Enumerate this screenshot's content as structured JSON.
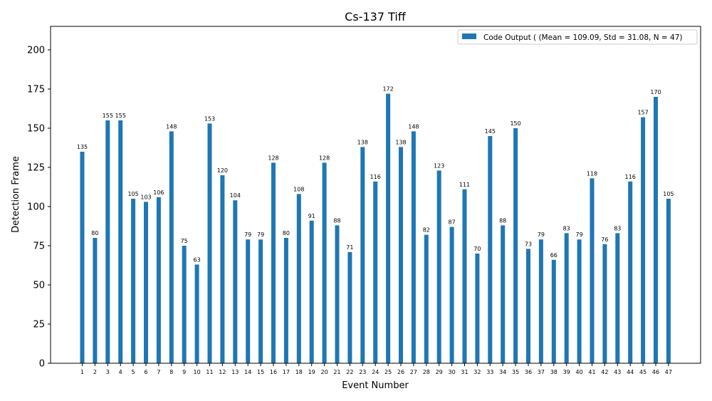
{
  "chart_data": {
    "type": "bar",
    "title": "Cs-137 Tiff",
    "xlabel": "Event Number",
    "ylabel": "Detection Frame",
    "ylim": [
      0,
      215
    ],
    "yticks": [
      0,
      25,
      50,
      75,
      100,
      125,
      150,
      175,
      200
    ],
    "grid": false,
    "legend_position": "top-right",
    "bar_color": "#1f77b4",
    "categories": [
      "1",
      "2",
      "3",
      "4",
      "5",
      "6",
      "7",
      "8",
      "9",
      "10",
      "11",
      "12",
      "13",
      "14",
      "15",
      "16",
      "17",
      "18",
      "19",
      "20",
      "21",
      "22",
      "23",
      "24",
      "25",
      "26",
      "27",
      "28",
      "29",
      "30",
      "31",
      "32",
      "33",
      "34",
      "35",
      "36",
      "37",
      "38",
      "39",
      "40",
      "41",
      "42",
      "43",
      "44",
      "45",
      "46",
      "47"
    ],
    "series": [
      {
        "name": "Code Output ( (Mean = 109.09, Std = 31.08, N = 47)",
        "values": [
          135,
          80,
          155,
          155,
          105,
          103,
          106,
          148,
          75,
          63,
          153,
          120,
          104,
          79,
          79,
          128,
          80,
          108,
          91,
          128,
          88,
          71,
          138,
          116,
          172,
          138,
          148,
          82,
          123,
          87,
          111,
          70,
          145,
          88,
          150,
          73,
          79,
          66,
          83,
          79,
          118,
          76,
          83,
          116,
          157,
          170,
          105
        ]
      }
    ]
  }
}
